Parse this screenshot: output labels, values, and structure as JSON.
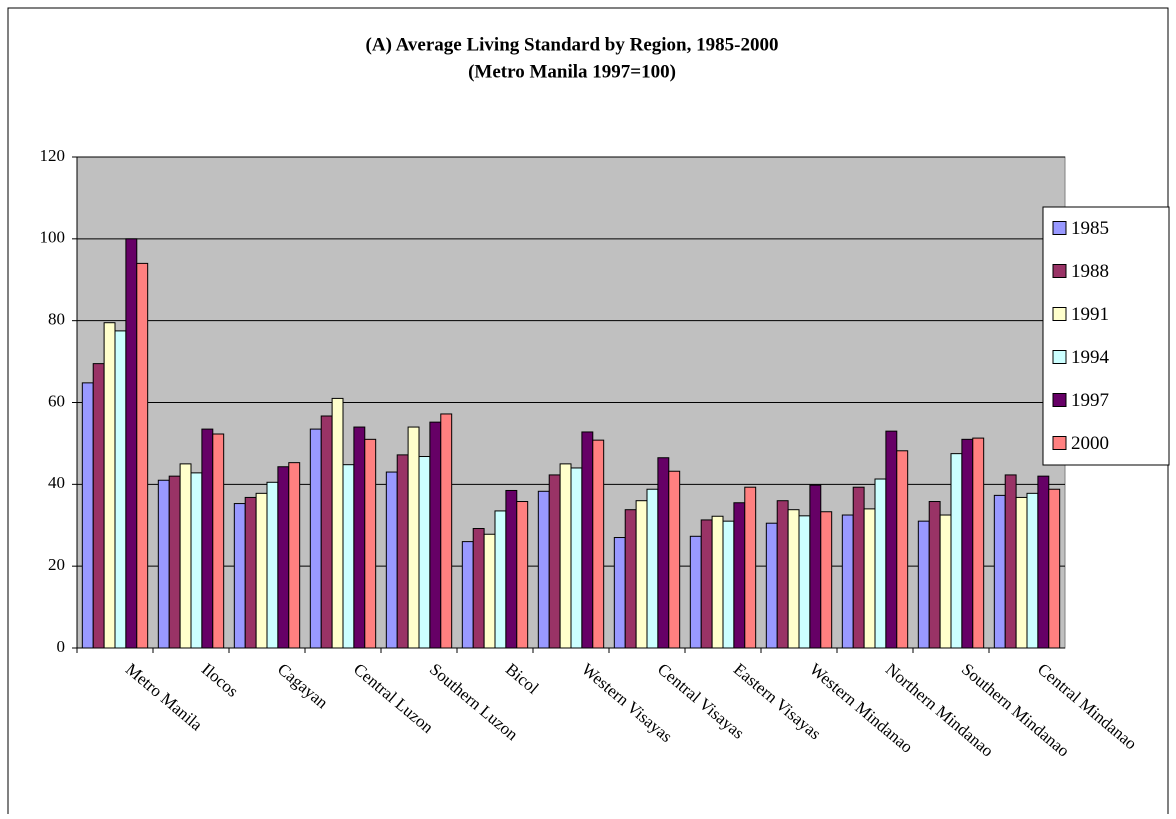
{
  "chart_data": {
    "type": "bar",
    "title": "(A) Average Living Standard by Region, 1985-2000",
    "subtitle": "(Metro Manila 1997=100)",
    "categories": [
      "Metro Manila",
      "Ilocos",
      "Cagayan",
      "Central Luzon",
      "Southern Luzon",
      "Bicol",
      "Western Visayas",
      "Central Visayas",
      "Eastern Visayas",
      "Western Mindanao",
      "Northern Mindanao",
      "Southern Mindanao",
      "Central Mindanao"
    ],
    "series": [
      {
        "name": "1985",
        "color": "#9999ff",
        "values": [
          64.8,
          41,
          35.3,
          53.5,
          43,
          26,
          38.3,
          27,
          27.3,
          30.5,
          32.5,
          31,
          37.3
        ]
      },
      {
        "name": "1988",
        "color": "#993366",
        "values": [
          69.5,
          42,
          36.8,
          56.7,
          47.2,
          29.2,
          42.3,
          33.8,
          31.3,
          36,
          39.3,
          35.8,
          42.3
        ]
      },
      {
        "name": "1991",
        "color": "#ffffcc",
        "values": [
          79.5,
          45,
          37.8,
          61,
          54,
          27.8,
          45,
          36,
          32.2,
          33.8,
          34,
          32.5,
          36.8
        ]
      },
      {
        "name": "1994",
        "color": "#ccffff",
        "values": [
          77.5,
          42.8,
          40.5,
          44.8,
          46.8,
          33.5,
          44,
          38.8,
          31,
          32.3,
          41.3,
          47.5,
          37.8
        ]
      },
      {
        "name": "1997",
        "color": "#660066",
        "values": [
          100,
          53.5,
          44.3,
          54,
          55.2,
          38.5,
          52.8,
          46.5,
          35.5,
          39.8,
          53,
          51,
          42
        ]
      },
      {
        "name": "2000",
        "color": "#ff8080",
        "values": [
          94,
          52.3,
          45.3,
          51,
          57.2,
          35.8,
          50.8,
          43.2,
          39.3,
          33.3,
          48.2,
          51.3,
          38.8
        ]
      }
    ],
    "ylim": [
      0,
      120
    ],
    "yticks": [
      0,
      20,
      40,
      60,
      80,
      100,
      120
    ],
    "grid": true,
    "legend": "right"
  }
}
